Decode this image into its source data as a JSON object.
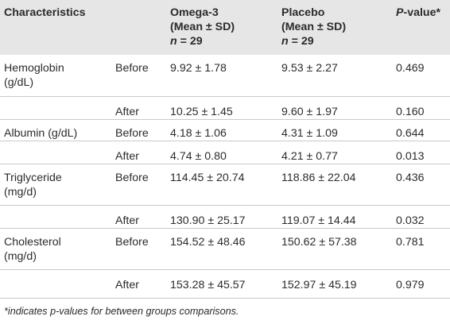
{
  "table": {
    "headers": {
      "characteristics": "Characteristics",
      "omega_line1": "Omega-3",
      "omega_line2": "(Mean ± SD)",
      "omega_line3_prefix": "n",
      "omega_line3_value": " = 29",
      "placebo_line1": "Placebo",
      "placebo_line2": "(Mean ± SD)",
      "placebo_line3_prefix": "n",
      "placebo_line3_value": " = 29",
      "pvalue_prefix": "P",
      "pvalue_suffix": "-value*"
    },
    "rows": [
      {
        "char_line1": "Hemoglobin",
        "char_line2": "(g/dL)",
        "time": "Before",
        "omega": "9.92 ± 1.78",
        "placebo": "9.53 ± 2.27",
        "p": "0.469"
      },
      {
        "char_line1": "",
        "char_line2": "",
        "time": "After",
        "omega": "10.25 ± 1.45",
        "placebo": "9.60 ± 1.97",
        "p": "0.160"
      },
      {
        "char_line1": "Albumin (g/dL)",
        "char_line2": "",
        "time": "Before",
        "omega": "4.18 ± 1.06",
        "placebo": "4.31 ± 1.09",
        "p": "0.644"
      },
      {
        "char_line1": "",
        "char_line2": "",
        "time": "After",
        "omega": "4.74 ± 0.80",
        "placebo": "4.21 ± 0.77",
        "p": "0.013"
      },
      {
        "char_line1": "Triglyceride",
        "char_line2": "(mg/d)",
        "time": "Before",
        "omega": "114.45 ± 20.74",
        "placebo": "118.86 ± 22.04",
        "p": "0.436"
      },
      {
        "char_line1": "",
        "char_line2": "",
        "time": "After",
        "omega": "130.90 ± 25.17",
        "placebo": "119.07 ± 14.44",
        "p": "0.032"
      },
      {
        "char_line1": "Cholesterol",
        "char_line2": "(mg/d)",
        "time": "Before",
        "omega": "154.52 ± 48.46",
        "placebo": "150.62 ± 57.38",
        "p": "0.781"
      },
      {
        "char_line1": "",
        "char_line2": "",
        "time": "After",
        "omega": "153.28 ± 45.57",
        "placebo": "152.97 ± 45.19",
        "p": "0.979"
      }
    ]
  },
  "footnote": "*indicates p-values for between groups comparisons."
}
